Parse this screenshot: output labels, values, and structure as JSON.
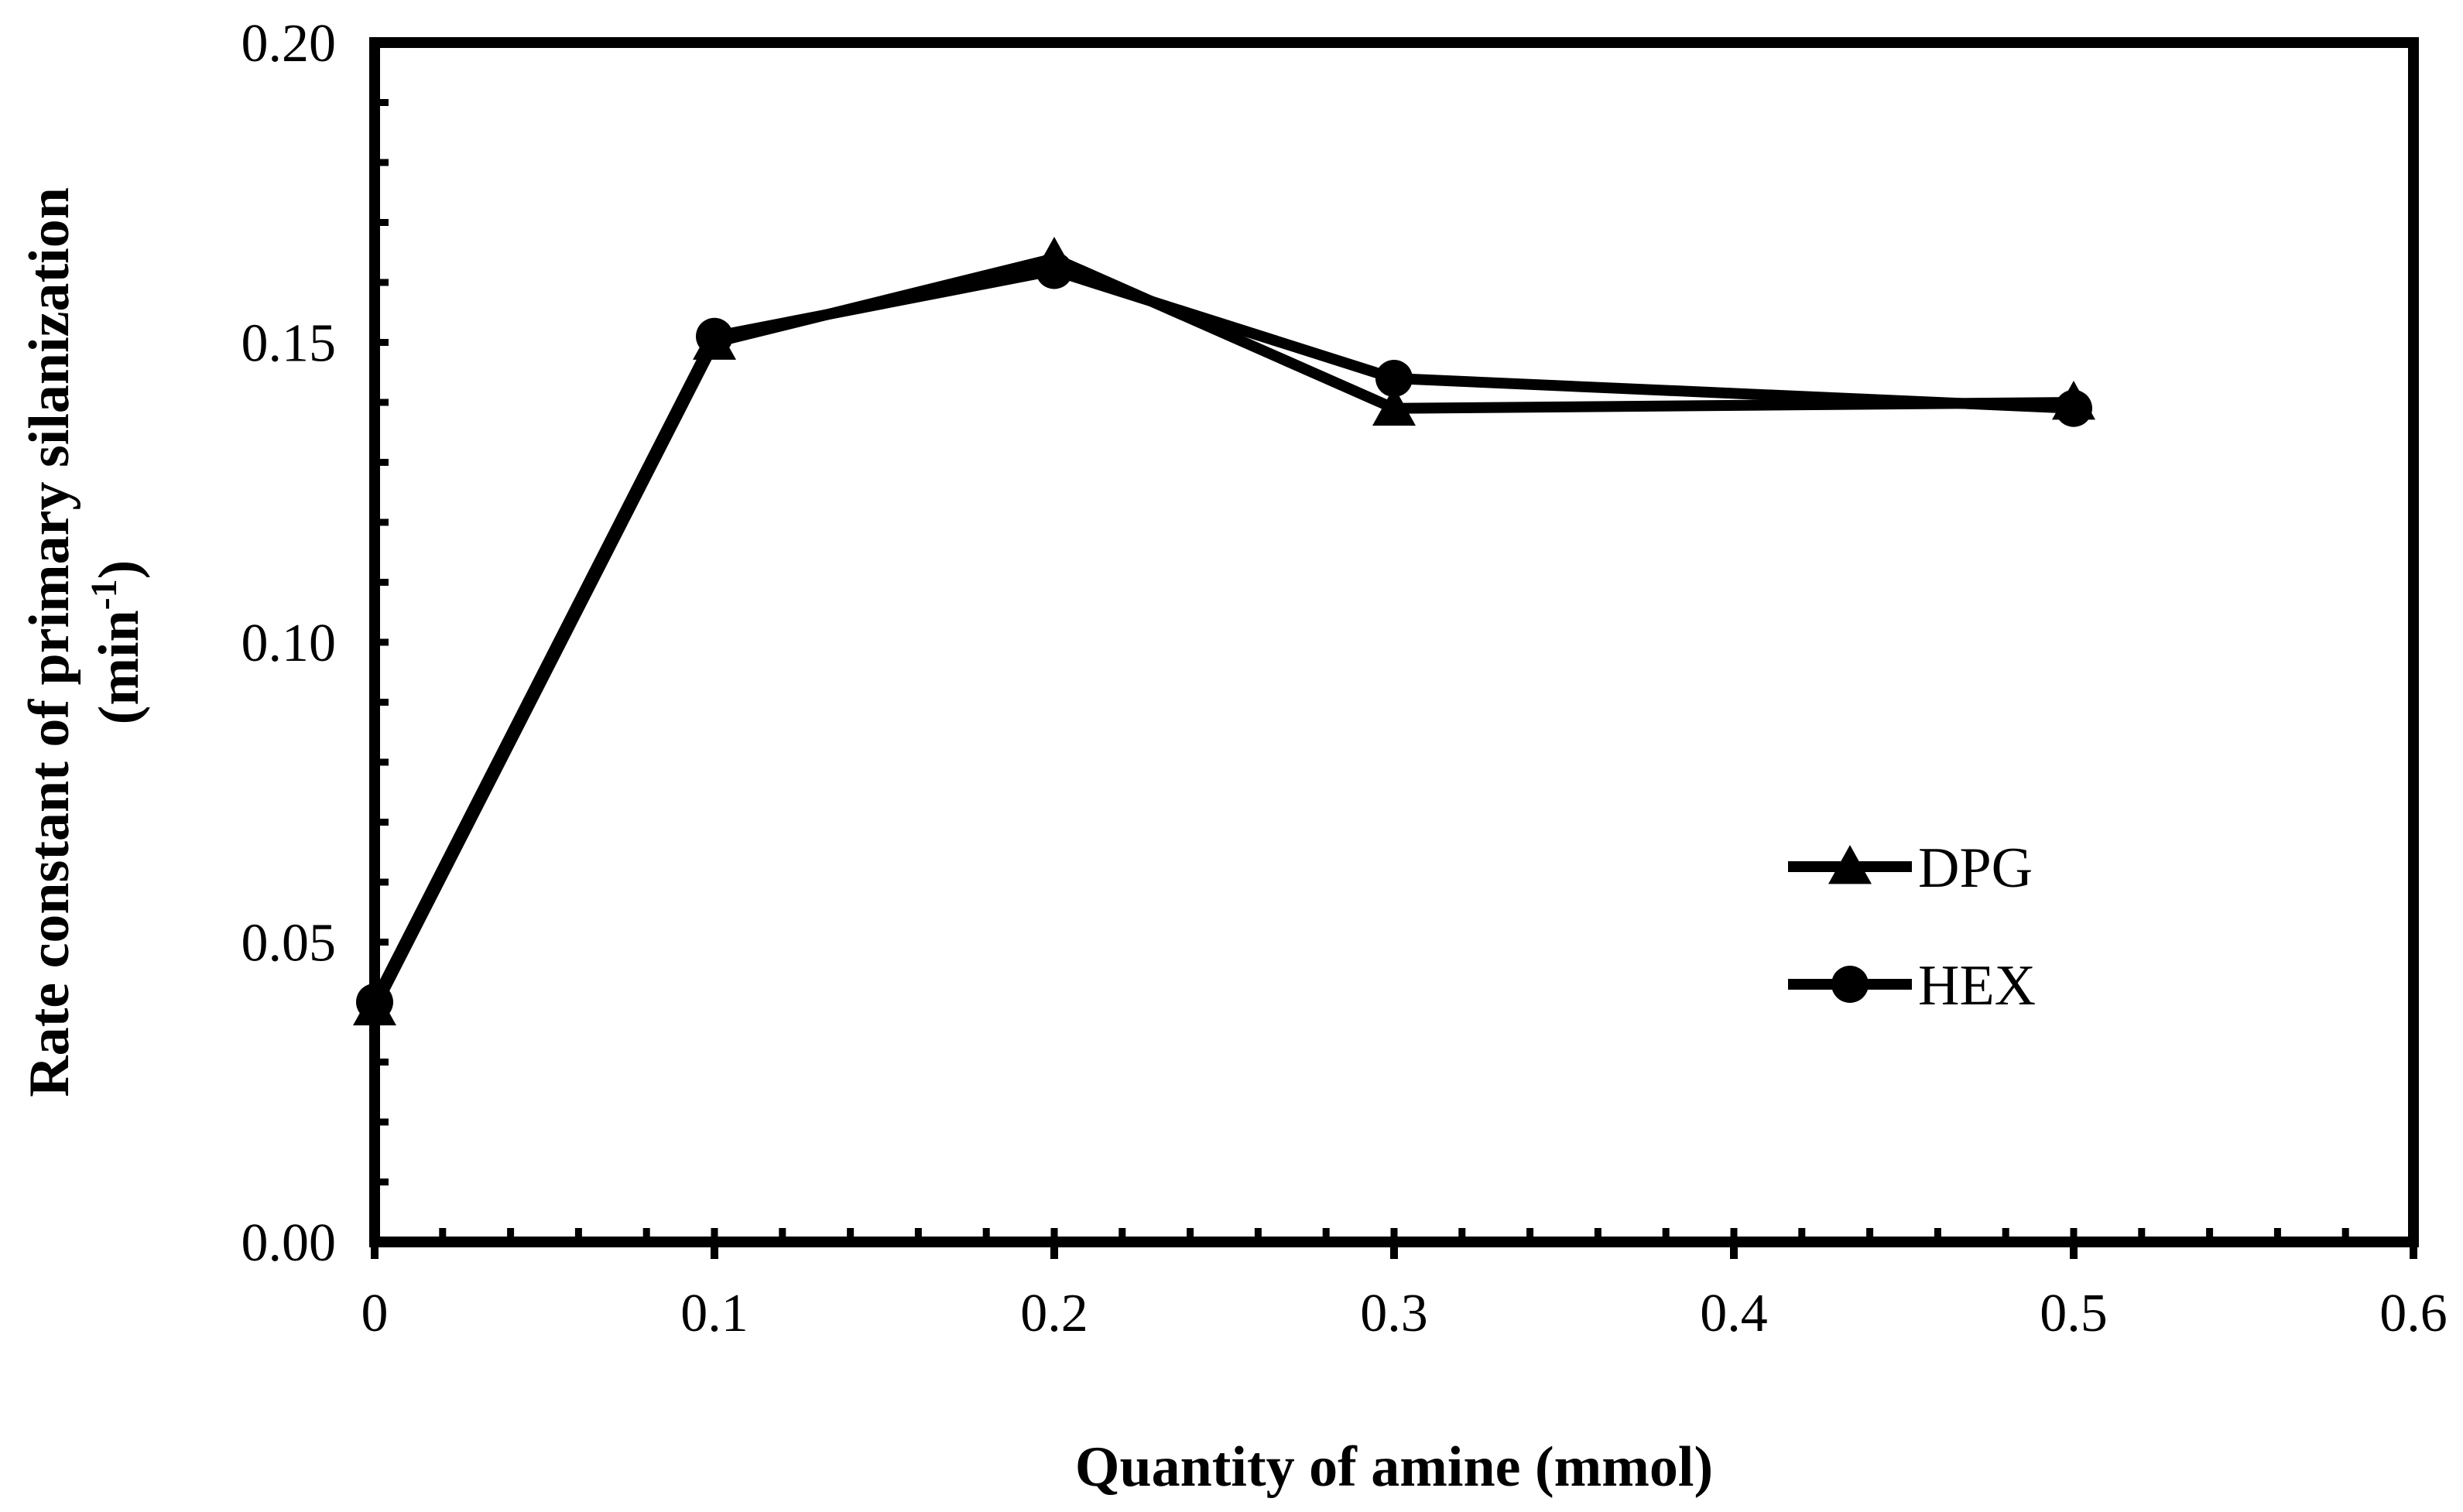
{
  "chart_data": {
    "type": "line",
    "title": "",
    "xlabel": "Quantity of amine (mmol)",
    "ylabel_main": "Rate constant of primary silanization",
    "ylabel_unit_prefix": "(min",
    "ylabel_unit_sup": "-1",
    "ylabel_unit_suffix": ")",
    "xlim": [
      0,
      0.6
    ],
    "ylim": [
      0,
      0.2
    ],
    "xticks": [
      0,
      0.1,
      0.2,
      0.3,
      0.4,
      0.5,
      0.6
    ],
    "xtick_labels": [
      "0",
      "0.1",
      "0.2",
      "0.3",
      "0.4",
      "0.5",
      "0.6"
    ],
    "yticks": [
      0,
      0.05,
      0.1,
      0.15,
      0.2
    ],
    "ytick_labels": [
      "0.00",
      "0.05",
      "0.10",
      "0.15",
      "0.20"
    ],
    "grid": false,
    "legend_position": "right-middle",
    "series": [
      {
        "name": "DPG",
        "marker": "triangle",
        "x": [
          0,
          0.1,
          0.2,
          0.3,
          0.5
        ],
        "values": [
          0.039,
          0.15,
          0.164,
          0.139,
          0.14
        ]
      },
      {
        "name": "HEX",
        "marker": "circle",
        "x": [
          0,
          0.1,
          0.2,
          0.3,
          0.5
        ],
        "values": [
          0.04,
          0.151,
          0.162,
          0.144,
          0.139
        ]
      }
    ],
    "colors": {
      "line": "#000000",
      "background": "#ffffff"
    }
  }
}
